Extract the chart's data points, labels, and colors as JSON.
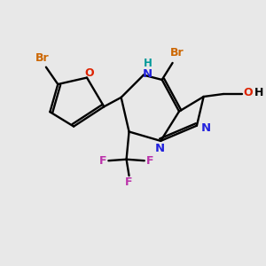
{
  "bg_color": "#e8e8e8",
  "C": "#000000",
  "N": "#2222dd",
  "O": "#dd2200",
  "Br": "#cc6600",
  "F": "#bb33aa",
  "H_teal": "#009999",
  "OH_red": "#dd2200"
}
